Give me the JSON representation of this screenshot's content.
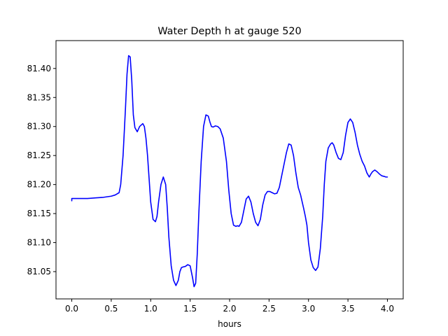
{
  "chart_data": {
    "type": "line",
    "title": "Water Depth h at gauge 520",
    "xlabel": "hours",
    "ylabel": "",
    "xlim": [
      -0.2,
      4.2
    ],
    "ylim": [
      81.003,
      81.448
    ],
    "xticks": [
      0.0,
      0.5,
      1.0,
      1.5,
      2.0,
      2.5,
      3.0,
      3.5,
      4.0
    ],
    "xtick_labels": [
      "0.0",
      "0.5",
      "1.0",
      "1.5",
      "2.0",
      "2.5",
      "3.0",
      "3.5",
      "4.0"
    ],
    "yticks": [
      81.05,
      81.1,
      81.15,
      81.2,
      81.25,
      81.3,
      81.35,
      81.4
    ],
    "ytick_labels": [
      "81.05",
      "81.10",
      "81.15",
      "81.20",
      "81.25",
      "81.30",
      "81.35",
      "81.40"
    ],
    "grid": false,
    "line_color": "#0000ff",
    "series": [
      {
        "x": [
          0.0,
          0.0,
          0.02,
          0.1,
          0.2,
          0.3,
          0.4,
          0.5,
          0.55,
          0.6,
          0.62,
          0.65,
          0.68,
          0.7,
          0.72,
          0.74,
          0.76,
          0.78,
          0.8,
          0.83,
          0.86,
          0.9,
          0.92,
          0.94,
          0.96,
          0.98,
          1.0,
          1.03,
          1.06,
          1.08,
          1.1,
          1.13,
          1.16,
          1.19,
          1.21,
          1.23,
          1.26,
          1.29,
          1.32,
          1.35,
          1.37,
          1.39,
          1.41,
          1.44,
          1.47,
          1.5,
          1.53,
          1.55,
          1.57,
          1.59,
          1.61,
          1.64,
          1.67,
          1.7,
          1.73,
          1.75,
          1.77,
          1.79,
          1.82,
          1.85,
          1.88,
          1.92,
          1.96,
          1.99,
          2.02,
          2.05,
          2.08,
          2.1,
          2.12,
          2.15,
          2.18,
          2.21,
          2.24,
          2.27,
          2.3,
          2.33,
          2.36,
          2.39,
          2.42,
          2.45,
          2.48,
          2.51,
          2.54,
          2.57,
          2.6,
          2.63,
          2.66,
          2.69,
          2.72,
          2.75,
          2.78,
          2.81,
          2.84,
          2.87,
          2.9,
          2.92,
          2.94,
          2.96,
          2.98,
          3.0,
          3.03,
          3.06,
          3.09,
          3.12,
          3.15,
          3.18,
          3.2,
          3.22,
          3.25,
          3.28,
          3.3,
          3.32,
          3.35,
          3.38,
          3.41,
          3.44,
          3.47,
          3.5,
          3.53,
          3.56,
          3.59,
          3.62,
          3.65,
          3.68,
          3.71,
          3.74,
          3.77,
          3.79,
          3.81,
          3.84,
          3.87,
          3.9,
          3.93,
          3.96,
          3.98,
          4.0
        ],
        "y": [
          81.172,
          81.176,
          81.176,
          81.176,
          81.176,
          81.177,
          81.178,
          81.18,
          81.182,
          81.186,
          81.2,
          81.25,
          81.33,
          81.39,
          81.422,
          81.42,
          81.38,
          81.32,
          81.298,
          81.291,
          81.3,
          81.305,
          81.3,
          81.28,
          81.25,
          81.21,
          81.17,
          81.14,
          81.136,
          81.145,
          81.17,
          81.2,
          81.213,
          81.2,
          81.16,
          81.11,
          81.06,
          81.035,
          81.026,
          81.035,
          81.05,
          81.057,
          81.058,
          81.059,
          81.062,
          81.06,
          81.04,
          81.024,
          81.03,
          81.08,
          81.15,
          81.24,
          81.3,
          81.32,
          81.318,
          81.308,
          81.3,
          81.299,
          81.301,
          81.3,
          81.296,
          81.28,
          81.24,
          81.19,
          81.15,
          81.13,
          81.128,
          81.129,
          81.128,
          81.135,
          81.155,
          81.175,
          81.18,
          81.17,
          81.15,
          81.135,
          81.129,
          81.14,
          81.165,
          81.182,
          81.188,
          81.188,
          81.186,
          81.184,
          81.185,
          81.195,
          81.215,
          81.235,
          81.255,
          81.27,
          81.268,
          81.25,
          81.22,
          81.195,
          81.182,
          81.17,
          81.158,
          81.145,
          81.13,
          81.1,
          81.07,
          81.057,
          81.052,
          81.058,
          81.09,
          81.145,
          81.2,
          81.24,
          81.263,
          81.27,
          81.272,
          81.268,
          81.255,
          81.245,
          81.243,
          81.255,
          81.285,
          81.307,
          81.313,
          81.307,
          81.29,
          81.268,
          81.252,
          81.24,
          81.232,
          81.22,
          81.213,
          81.218,
          81.222,
          81.225,
          81.222,
          81.218,
          81.215,
          81.214,
          81.213,
          81.213
        ]
      }
    ]
  }
}
